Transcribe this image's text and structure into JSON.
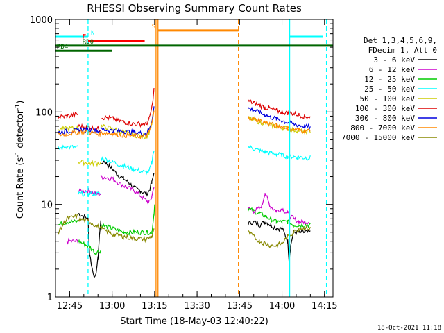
{
  "chart_data": {
    "type": "line",
    "title": "RHESSI Observing Summary Count Rates",
    "xlabel": "Start Time (18-May-03 12:40:22)",
    "ylabel_main": "Count Rate (s",
    "ylabel_exp1": "-1",
    "ylabel_mid": " detector",
    "ylabel_exp2": "-1",
    "ylabel_end": ")",
    "yscale": "log",
    "ylim": [
      1,
      1000
    ],
    "xlim_min": [
      0,
      98
    ],
    "x_tick_labels": [
      "12:45",
      "13:00",
      "13:15",
      "13:30",
      "13:45",
      "14:00",
      "14:15"
    ],
    "x_tick_minutes": [
      5,
      20,
      35,
      50,
      65,
      80,
      95
    ],
    "y_tick_labels": [
      "1",
      "10",
      "100",
      "1000"
    ],
    "y_tick_values": [
      1,
      10,
      100,
      1000
    ],
    "footer_date": "18-Oct-2021 11:18",
    "legend_header": [
      "Det 1,3,4,5,6,9,",
      "FDecim 1, Att 0"
    ],
    "series": [
      {
        "name": "3 - 6 keV",
        "color": "#000000",
        "segments": [
          [
            [
              8,
              8
            ],
            [
              11.5,
              7
            ],
            [
              12,
              3
            ],
            [
              13,
              2
            ],
            [
              14,
              1.6
            ],
            [
              15,
              2.6
            ],
            [
              15.5,
              4.5
            ],
            [
              16,
              7
            ]
          ],
          [
            [
              16.2,
              26
            ],
            [
              17,
              30
            ],
            [
              18,
              28
            ],
            [
              20,
              24
            ],
            [
              22,
              21
            ],
            [
              24,
              19
            ],
            [
              26,
              17
            ],
            [
              28,
              15
            ],
            [
              30,
              14
            ],
            [
              32,
              13
            ],
            [
              33,
              14
            ],
            [
              34,
              17
            ],
            [
              34.8,
              22
            ]
          ],
          [
            [
              68,
              6.2
            ],
            [
              70,
              6.5
            ],
            [
              72,
              6
            ],
            [
              74,
              6.5
            ],
            [
              76,
              6
            ],
            [
              78,
              5.5
            ],
            [
              80,
              5.5
            ],
            [
              82,
              4
            ],
            [
              82.5,
              2.5
            ],
            [
              83,
              3.5
            ],
            [
              84,
              5
            ],
            [
              86,
              5
            ],
            [
              88,
              5
            ],
            [
              90,
              5
            ]
          ]
        ]
      },
      {
        "name": "6 - 12 keV",
        "color": "#cc00cc",
        "segments": [
          [
            [
              4,
              4
            ],
            [
              8,
              4
            ]
          ],
          [
            [
              8,
              14
            ],
            [
              12,
              14
            ],
            [
              14,
              13
            ],
            [
              16,
              13
            ]
          ],
          [
            [
              16,
              20
            ],
            [
              20,
              19
            ],
            [
              24,
              16
            ],
            [
              28,
              14
            ],
            [
              32,
              11
            ],
            [
              33,
              10.5
            ],
            [
              34,
              12
            ],
            [
              34.8,
              16
            ]
          ],
          [
            [
              68,
              9
            ],
            [
              70,
              8.5
            ],
            [
              72,
              9
            ],
            [
              73,
              10
            ],
            [
              74,
              13.5
            ],
            [
              75,
              11
            ],
            [
              76,
              9.5
            ],
            [
              78,
              8.5
            ],
            [
              80,
              9
            ],
            [
              82,
              8
            ],
            [
              84,
              7
            ],
            [
              86,
              6.5
            ],
            [
              88,
              6.5
            ],
            [
              90,
              6.5
            ]
          ]
        ]
      },
      {
        "name": "12 - 25 keV",
        "color": "#00cc00",
        "segments": [
          [
            [
              1,
              6
            ],
            [
              4,
              6.5
            ],
            [
              8,
              6.5
            ]
          ],
          [
            [
              8,
              4
            ],
            [
              12,
              3.5
            ],
            [
              14,
              3
            ],
            [
              16,
              3.2
            ]
          ],
          [
            [
              16,
              6
            ],
            [
              20,
              5.5
            ],
            [
              24,
              5
            ],
            [
              28,
              5
            ],
            [
              32,
              5
            ],
            [
              34,
              5
            ],
            [
              34.8,
              8
            ],
            [
              35,
              10
            ]
          ],
          [
            [
              68,
              9
            ],
            [
              70,
              8.5
            ],
            [
              72,
              8
            ],
            [
              74,
              7.5
            ],
            [
              76,
              7
            ],
            [
              78,
              6.5
            ],
            [
              80,
              6.5
            ],
            [
              82,
              6.5
            ],
            [
              84,
              6
            ],
            [
              86,
              6
            ],
            [
              88,
              6
            ],
            [
              90,
              6
            ]
          ]
        ]
      },
      {
        "name": "25 - 50 keV",
        "color": "#00ffff",
        "segments": [
          [
            [
              1,
              40
            ],
            [
              4,
              42
            ],
            [
              8,
              41
            ]
          ],
          [
            [
              8,
              13
            ],
            [
              12,
              13
            ],
            [
              16,
              13
            ]
          ],
          [
            [
              16,
              32
            ],
            [
              20,
              29
            ],
            [
              24,
              26
            ],
            [
              28,
              24
            ],
            [
              32,
              22
            ],
            [
              33,
              22.5
            ],
            [
              34,
              28
            ],
            [
              34.8,
              40
            ]
          ],
          [
            [
              68,
              42
            ],
            [
              70,
              40
            ],
            [
              72,
              38
            ],
            [
              74,
              37
            ],
            [
              76,
              36
            ],
            [
              78,
              35
            ],
            [
              80,
              34
            ],
            [
              82,
              33
            ],
            [
              84,
              33
            ],
            [
              86,
              32.5
            ],
            [
              88,
              32
            ],
            [
              90,
              32
            ]
          ]
        ]
      },
      {
        "name": "50 - 100 keV",
        "color": "#cccc00",
        "segments": [
          [
            [
              1,
              65
            ],
            [
              4,
              66
            ],
            [
              8,
              67
            ]
          ],
          [
            [
              8,
              29
            ],
            [
              12,
              28
            ],
            [
              16,
              28
            ]
          ],
          [
            [
              16,
              70
            ],
            [
              20,
              66
            ],
            [
              24,
              60
            ],
            [
              28,
              56
            ],
            [
              32,
              54
            ],
            [
              33,
              60
            ],
            [
              34,
              75
            ],
            [
              34.8,
              105
            ]
          ],
          [
            [
              68,
              85
            ],
            [
              70,
              82
            ],
            [
              72,
              78
            ],
            [
              74,
              75
            ],
            [
              76,
              72
            ],
            [
              78,
              70
            ],
            [
              80,
              68
            ],
            [
              82,
              66
            ],
            [
              84,
              64
            ],
            [
              86,
              63
            ],
            [
              88,
              62
            ],
            [
              90,
              62
            ]
          ]
        ]
      },
      {
        "name": "100 - 300 keV",
        "color": "#dd0000",
        "segments": [
          [
            [
              1,
              88
            ],
            [
              4,
              90
            ],
            [
              8,
              95
            ]
          ],
          [
            [
              8,
              70
            ],
            [
              12,
              68
            ],
            [
              16,
              65
            ]
          ],
          [
            [
              16,
              88
            ],
            [
              20,
              85
            ],
            [
              24,
              78
            ],
            [
              28,
              74
            ],
            [
              32,
              74
            ],
            [
              33,
              82
            ],
            [
              34,
              110
            ],
            [
              34.8,
              175
            ]
          ],
          [
            [
              68,
              130
            ],
            [
              70,
              125
            ],
            [
              72,
              118
            ],
            [
              74,
              112
            ],
            [
              76,
              108
            ],
            [
              78,
              103
            ],
            [
              80,
              100
            ],
            [
              82,
              98
            ],
            [
              84,
              96
            ],
            [
              86,
              93
            ],
            [
              88,
              90
            ],
            [
              90,
              88
            ]
          ]
        ]
      },
      {
        "name": "300 - 800 keV",
        "color": "#0000dd",
        "segments": [
          [
            [
              1,
              60
            ],
            [
              4,
              62
            ],
            [
              8,
              63
            ]
          ],
          [
            [
              8,
              65
            ],
            [
              12,
              64
            ],
            [
              16,
              62
            ]
          ],
          [
            [
              16,
              65
            ],
            [
              20,
              63
            ],
            [
              24,
              62
            ],
            [
              28,
              60
            ],
            [
              32,
              58
            ],
            [
              33,
              64
            ],
            [
              34,
              80
            ],
            [
              34.8,
              115
            ]
          ],
          [
            [
              68,
              110
            ],
            [
              70,
              105
            ],
            [
              72,
              98
            ],
            [
              74,
              93
            ],
            [
              76,
              88
            ],
            [
              78,
              84
            ],
            [
              80,
              80
            ],
            [
              82,
              77
            ],
            [
              84,
              74
            ],
            [
              86,
              72
            ],
            [
              88,
              70
            ],
            [
              90,
              68
            ]
          ]
        ]
      },
      {
        "name": "800 - 7000 keV",
        "color": "#ff8800",
        "segments": [
          [
            [
              1,
              56
            ],
            [
              4,
              58
            ],
            [
              8,
              60
            ]
          ],
          [
            [
              8,
              62
            ],
            [
              12,
              60
            ],
            [
              16,
              57
            ]
          ],
          [
            [
              16,
              60
            ],
            [
              20,
              58
            ],
            [
              24,
              56
            ],
            [
              28,
              55
            ],
            [
              32,
              54
            ],
            [
              33,
              60
            ],
            [
              34,
              74
            ],
            [
              34.8,
              100
            ]
          ],
          [
            [
              68,
              88
            ],
            [
              70,
              84
            ],
            [
              72,
              80
            ],
            [
              74,
              77
            ],
            [
              76,
              74
            ],
            [
              78,
              71
            ],
            [
              80,
              69
            ],
            [
              82,
              67
            ],
            [
              84,
              65
            ],
            [
              86,
              64
            ],
            [
              88,
              63
            ],
            [
              90,
              62
            ]
          ]
        ]
      },
      {
        "name": "7000 - 15000 keV",
        "color": "#888800",
        "segments": [
          [
            [
              1,
              5
            ],
            [
              4,
              7
            ],
            [
              8,
              7.5
            ]
          ],
          [
            [
              8,
              7
            ],
            [
              12,
              6.5
            ],
            [
              16,
              5.5
            ]
          ],
          [
            [
              16,
              5.5
            ],
            [
              20,
              4.8
            ],
            [
              24,
              4.5
            ],
            [
              28,
              4.3
            ],
            [
              32,
              4.2
            ],
            [
              34,
              4.5
            ],
            [
              34.8,
              5.5
            ]
          ],
          [
            [
              68,
              5
            ],
            [
              70,
              4.5
            ],
            [
              72,
              4
            ],
            [
              74,
              3.8
            ],
            [
              76,
              3.6
            ],
            [
              78,
              3.6
            ],
            [
              80,
              3.8
            ],
            [
              82,
              4.5
            ],
            [
              84,
              5
            ],
            [
              86,
              5.5
            ],
            [
              88,
              5.5
            ],
            [
              90,
              5.5
            ]
          ]
        ]
      }
    ],
    "vertical_lines": [
      {
        "minute": 11.5,
        "color": "#00ffff",
        "dashed": true
      },
      {
        "minute": 35.5,
        "color": "#ff8800",
        "dashed": false
      },
      {
        "minute": 36.2,
        "color": "#ff8800",
        "dashed": false
      },
      {
        "minute": 64.6,
        "color": "#ff8800",
        "dashed": true
      },
      {
        "minute": 82.7,
        "color": "#00ffff",
        "dashed": false
      },
      {
        "minute": 95.7,
        "color": "#00ffff",
        "dashed": true
      }
    ],
    "top_bars": [
      {
        "label": "N",
        "color": "#00ffff",
        "y": 650,
        "x0": 0,
        "x1": 11.5,
        "label_minute": 12.5
      },
      {
        "label": "N",
        "color": "#00ffff",
        "y": 650,
        "x0": 82.7,
        "x1": 94.5,
        "label_minute": null
      },
      {
        "label": "F",
        "color": "#ff0000",
        "y": 590,
        "x0": 11.5,
        "x1": 31.5,
        "label_minute": 9.5
      },
      {
        "label": "S",
        "color": "#ff8800",
        "y": 760,
        "x0": 36.2,
        "x1": 64.6,
        "label_minute": 34
      },
      {
        "label": "RD0",
        "color": "#006600",
        "y": 520,
        "x0": 0,
        "x1": 98,
        "label_minute": 9.5
      },
      {
        "label": "RD4",
        "color": "#006600",
        "y": 458,
        "x0": 0,
        "x1": 20,
        "label_minute": 0.5
      }
    ]
  }
}
